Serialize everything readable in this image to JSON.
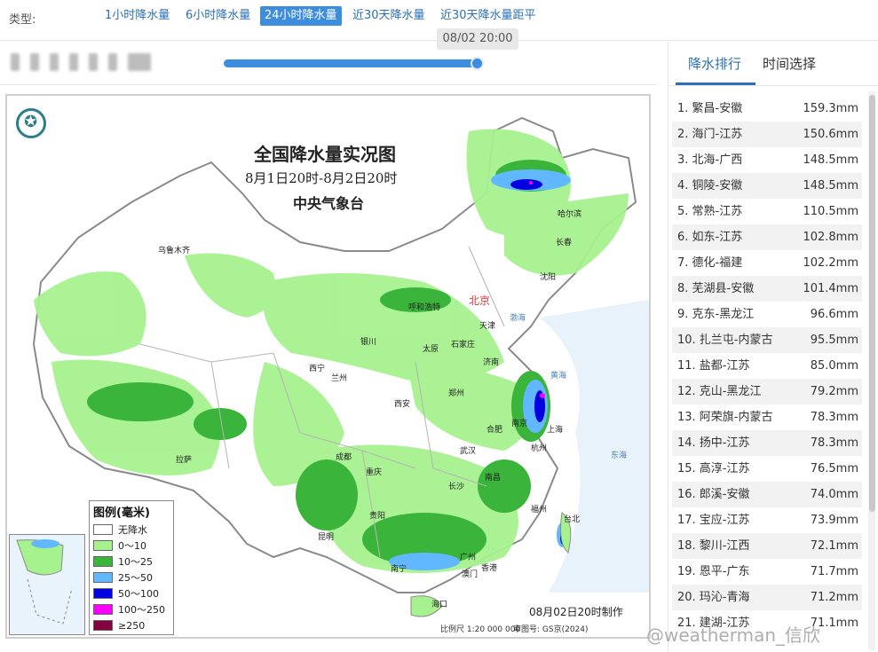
{
  "typebar": {
    "label": "类型:",
    "buttons": [
      "1小时降水量",
      "6小时降水量",
      "24小时降水量",
      "近30天降水量",
      "近30天降水量距平"
    ],
    "active_index": 2
  },
  "timeline": {
    "tooltip": "08/02 20:00",
    "position": 1.0
  },
  "map": {
    "title": "全国降水量实况图",
    "subtitle": "8月1日20时-8月2日20时",
    "org": "中央气象台",
    "made_time": "08月02日20时制作",
    "scale": "比例尺 1:20 000 000",
    "review": "审图号: GS京(2024)",
    "cities": {
      "wulumuqi": "乌鲁木齐",
      "haerbin": "哈尔滨",
      "changchun": "长春",
      "shenyang": "沈阳",
      "beijing": "北京",
      "tianjin": "天津",
      "huhehaote": "呼和浩特",
      "taiyuan": "太原",
      "shijiazhuang": "石家庄",
      "jinan": "济南",
      "yinchuan": "银川",
      "xining": "西宁",
      "lanzhou": "兰州",
      "zhengzhou": "郑州",
      "xian": "西安",
      "hefei": "合肥",
      "nanjing": "南京",
      "shanghai": "上海",
      "hangzhou": "杭州",
      "wuhan": "武汉",
      "chengdu": "成都",
      "chongqing": "重庆",
      "lasa": "拉萨",
      "changsha": "长沙",
      "nanchang": "南昌",
      "fuzhou": "福州",
      "guiyang": "贵阳",
      "kunming": "昆明",
      "nanning": "南宁",
      "guangzhou": "广州",
      "aomen": "澳门",
      "xianggang": "香港",
      "haikou": "海口",
      "taibei": "台北",
      "donghai": "东海",
      "huanghai": "黄海",
      "bohai": "渤海"
    }
  },
  "legend": {
    "title": "图例(毫米)",
    "items": [
      {
        "label": "无降水",
        "color": "#ffffff"
      },
      {
        "label": "0～10",
        "color": "#a6f28f"
      },
      {
        "label": "10～25",
        "color": "#3ab43a"
      },
      {
        "label": "25～50",
        "color": "#61b8ff"
      },
      {
        "label": "50～100",
        "color": "#0000e1"
      },
      {
        "label": "100～250",
        "color": "#fa00fa"
      },
      {
        "label": "≥250",
        "color": "#800040"
      }
    ]
  },
  "panel": {
    "tabs": [
      "降水排行",
      "时间选择"
    ],
    "active_tab": 0,
    "ranking": [
      {
        "name": "1. 繁昌-安徽",
        "value": "159.3mm"
      },
      {
        "name": "2. 海门-江苏",
        "value": "150.6mm"
      },
      {
        "name": "3. 北海-广西",
        "value": "148.5mm"
      },
      {
        "name": "4. 铜陵-安徽",
        "value": "148.5mm"
      },
      {
        "name": "5. 常熟-江苏",
        "value": "110.5mm"
      },
      {
        "name": "6. 如东-江苏",
        "value": "102.8mm"
      },
      {
        "name": "7. 德化-福建",
        "value": "102.2mm"
      },
      {
        "name": "8. 芜湖县-安徽",
        "value": "101.4mm"
      },
      {
        "name": "9. 克东-黑龙江",
        "value": "96.6mm"
      },
      {
        "name": "10. 扎兰屯-内蒙古",
        "value": "95.5mm"
      },
      {
        "name": "11. 盐都-江苏",
        "value": "85.0mm"
      },
      {
        "name": "12. 克山-黑龙江",
        "value": "79.2mm"
      },
      {
        "name": "13. 阿荣旗-内蒙古",
        "value": "78.3mm"
      },
      {
        "name": "14. 扬中-江苏",
        "value": "78.3mm"
      },
      {
        "name": "15. 高淳-江苏",
        "value": "76.5mm"
      },
      {
        "name": "16. 郎溪-安徽",
        "value": "74.0mm"
      },
      {
        "name": "17. 宝应-江苏",
        "value": "73.9mm"
      },
      {
        "name": "18. 黎川-江西",
        "value": "72.1mm"
      },
      {
        "name": "19. 恩平-广东",
        "value": "71.7mm"
      },
      {
        "name": "20. 玛沁-青海",
        "value": "71.2mm"
      },
      {
        "name": "21. 建湖-江苏",
        "value": "71.1mm"
      }
    ]
  },
  "watermark": "@weatherman_信欣"
}
